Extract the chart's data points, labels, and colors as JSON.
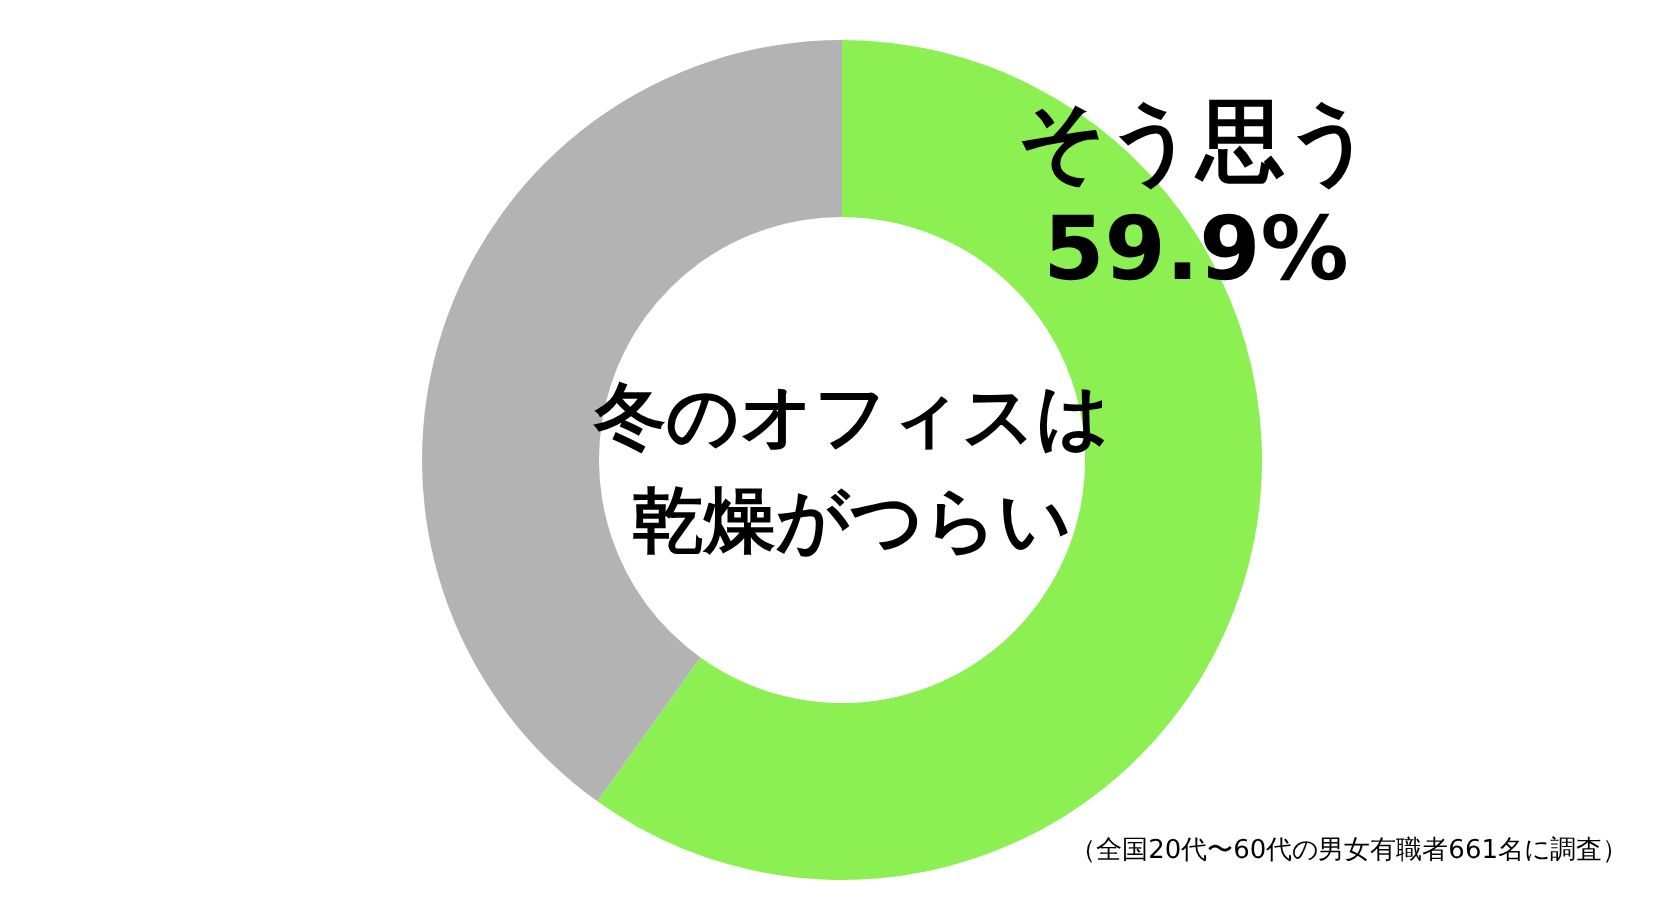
{
  "chart_data": {
    "type": "donut",
    "title": "冬のオフィスは乾燥がつらい",
    "categories": [
      "そう思う",
      null
    ],
    "values": [
      59.9,
      40.1
    ],
    "colors": [
      "#8cef52",
      "#b3b3b3"
    ],
    "value_labels": [
      "59.9%",
      null
    ],
    "legend": false,
    "annotations": [
      "（全国20代〜60代の男女有職者661名に調査）"
    ]
  }
}
